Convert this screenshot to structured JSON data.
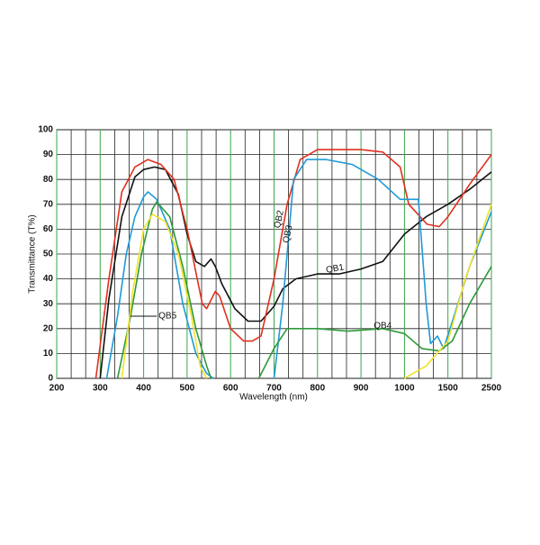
{
  "chart_data": {
    "type": "line",
    "xlabel": "Wavelength (nm)",
    "ylabel": "Transmittance (T%)",
    "xlim": [
      200,
      2500
    ],
    "ylim": [
      0,
      100
    ],
    "xticks": [
      200,
      300,
      400,
      500,
      600,
      700,
      800,
      900,
      1000,
      1500,
      2500
    ],
    "yticks": [
      0,
      10,
      20,
      30,
      40,
      50,
      60,
      70,
      80,
      90,
      100
    ],
    "grid": true,
    "series": [
      {
        "name": "QB1",
        "color": "#111111",
        "x": [
          300,
          320,
          350,
          380,
          400,
          425,
          450,
          480,
          500,
          520,
          540,
          555,
          565,
          580,
          610,
          640,
          670,
          700,
          720,
          750,
          800,
          850,
          900,
          950,
          1000,
          1250,
          1500,
          2000,
          2500
        ],
        "values": [
          0,
          32,
          65,
          81,
          84,
          85,
          84,
          74,
          58,
          47,
          45,
          48,
          45,
          38,
          28,
          23,
          23,
          29,
          36,
          40,
          42,
          42,
          44,
          47,
          58,
          65,
          70,
          76,
          83
        ]
      },
      {
        "name": "QB2",
        "color": "#e0301e",
        "x": [
          290,
          320,
          350,
          380,
          410,
          440,
          470,
          500,
          535,
          545,
          565,
          575,
          600,
          630,
          650,
          670,
          700,
          730,
          760,
          800,
          900,
          950,
          990,
          1050,
          1260,
          1400,
          1500,
          2000,
          2500
        ],
        "values": [
          0,
          40,
          75,
          85,
          88,
          86,
          80,
          60,
          30,
          28,
          35,
          33,
          20,
          15,
          15,
          17,
          40,
          70,
          88,
          92,
          92,
          91,
          85,
          70,
          62,
          61,
          65,
          78,
          90
        ]
      },
      {
        "name": "QB3",
        "color": "#1e9ad6",
        "x": [
          315,
          340,
          360,
          380,
          400,
          410,
          430,
          460,
          490,
          520,
          545,
          560,
          620,
          700,
          720,
          745,
          775,
          820,
          880,
          940,
          990,
          1160,
          1250,
          1300,
          1380,
          1450,
          1550,
          2000,
          2500
        ],
        "values": [
          0,
          25,
          50,
          65,
          73,
          75,
          72,
          60,
          30,
          10,
          2,
          0,
          null,
          0,
          30,
          80,
          88,
          88,
          86,
          80,
          72,
          72,
          30,
          14,
          17,
          12,
          20,
          45,
          67
        ]
      },
      {
        "name": "QB4",
        "color": "#2e9a3a",
        "x": [
          340,
          370,
          395,
          420,
          430,
          460,
          490,
          520,
          545,
          555,
          620,
          665,
          700,
          730,
          800,
          870,
          950,
          1000,
          1200,
          1400,
          1600,
          2000,
          2500
        ],
        "values": [
          0,
          25,
          50,
          68,
          71,
          65,
          45,
          20,
          5,
          0,
          null,
          0,
          12,
          20,
          20,
          19,
          20,
          18,
          12,
          11,
          15,
          30,
          45
        ]
      },
      {
        "name": "QB5",
        "color": "#f2e22a",
        "x": [
          350,
          375,
          400,
          420,
          450,
          480,
          510,
          530,
          545,
          800,
          1000,
          1250,
          1500,
          1900,
          2500
        ],
        "values": [
          0,
          35,
          60,
          66,
          63,
          50,
          25,
          5,
          0,
          null,
          0,
          5,
          15,
          40,
          70
        ]
      }
    ]
  }
}
